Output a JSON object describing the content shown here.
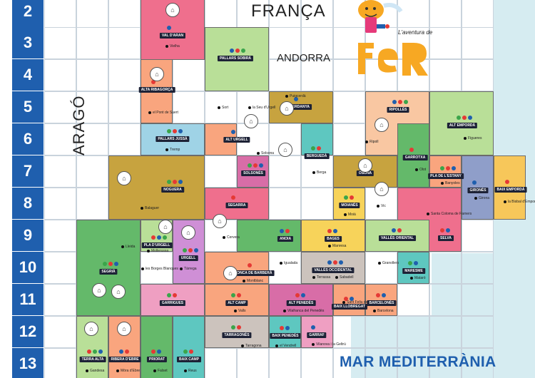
{
  "rows": [
    "2",
    "3",
    "4",
    "5",
    "6",
    "7",
    "8",
    "9",
    "10",
    "11",
    "12",
    "13"
  ],
  "neighbours": {
    "franca": "FRANÇA",
    "andorra": "ANDORRA",
    "arago": "ARAGÓ"
  },
  "sea_label": "MAR MEDITERRÀNIA",
  "logo": {
    "subtitle": "L'aventura de",
    "name": "FeR"
  },
  "comarques": [
    {
      "name": "VAL D'ARAN",
      "capital": "Vielha"
    },
    {
      "name": "PALLARS SOBIRÀ",
      "capital": "Sort"
    },
    {
      "name": "ALTA RIBAGORÇA",
      "capital": "el Pont de Suert"
    },
    {
      "name": "PALLARS JUSSÀ",
      "capital": "Tremp"
    },
    {
      "name": "ALT URGELL",
      "capital": "la Seu d'Urgell"
    },
    {
      "name": "CERDANYA",
      "capital": "Puigcerdà"
    },
    {
      "name": "RIPOLLÈS",
      "capital": "Ripoll"
    },
    {
      "name": "ALT EMPORDÀ",
      "capital": "Figueres"
    },
    {
      "name": "BERGUEDÀ",
      "capital": "Berga"
    },
    {
      "name": "GARROTXA",
      "capital": "Olot"
    },
    {
      "name": "SOLSONÈS",
      "capital": "Solsona"
    },
    {
      "name": "OSONA",
      "capital": "Vic"
    },
    {
      "name": "PLA DE L'ESTANY",
      "capital": "Banyoles"
    },
    {
      "name": "NOGUERA",
      "capital": "Balaguer"
    },
    {
      "name": "GIRONÈS",
      "capital": "Girona"
    },
    {
      "name": "BAIX EMPORDÀ",
      "capital": "la Bisbal d'Empordà"
    },
    {
      "name": "SEGARRA",
      "capital": "Cervera"
    },
    {
      "name": "MOIANÈS",
      "capital": "Moià"
    },
    {
      "name": "SELVA",
      "capital": "Santa Coloma de Farners"
    },
    {
      "name": "ANOIA",
      "capital": "Igualada"
    },
    {
      "name": "BAGES",
      "capital": "Manresa"
    },
    {
      "name": "VALLÈS ORIENTAL",
      "capital": "Granollers"
    },
    {
      "name": "PLA D'URGELL",
      "capital": "Mollerussa"
    },
    {
      "name": "SEGRIÀ",
      "capital": "Lleida"
    },
    {
      "name": "URGELL",
      "capital": "Tàrrega"
    },
    {
      "name": "CONCA DE BARBERÀ",
      "capital": "Montblanc"
    },
    {
      "name": "VALLÈS OCCIDENTAL",
      "capital": "Terrassa"
    },
    {
      "name": "MARESME",
      "capital": "Mataró"
    },
    {
      "name": "GARRIGUES",
      "capital": "les Borges Blanques"
    },
    {
      "name": "ALT CAMP",
      "capital": "Valls"
    },
    {
      "name": "ALT PENEDÈS",
      "capital": "Vilafranca del Penedès"
    },
    {
      "name": "BAIX LLOBREGAT",
      "capital": "Sant Feliu de Llobregat"
    },
    {
      "name": "BARCELONÈS",
      "capital": "Barcelona"
    },
    {
      "name": "TARRAGONÈS",
      "capital": "Tarragona"
    },
    {
      "name": "BAIX PENEDÈS",
      "capital": "el Vendrell"
    },
    {
      "name": "GARRAF",
      "capital": "Vilanova i la Geltrú"
    },
    {
      "name": "TERRA ALTA",
      "capital": "Gandesa"
    },
    {
      "name": "RIBERA D'EBRE",
      "capital": "Móra d'Ebre"
    },
    {
      "name": "PRIORAT",
      "capital": "Falset"
    },
    {
      "name": "BAIX CAMP",
      "capital": "Reus"
    }
  ],
  "extra_capital": "Sabadell",
  "colors": {
    "row_badge": "#1f5fae",
    "label_bg": "#1d2236",
    "sea": "#d6ecf1",
    "logo_orange": "#f7a823",
    "title_blue": "#1f5fae"
  }
}
